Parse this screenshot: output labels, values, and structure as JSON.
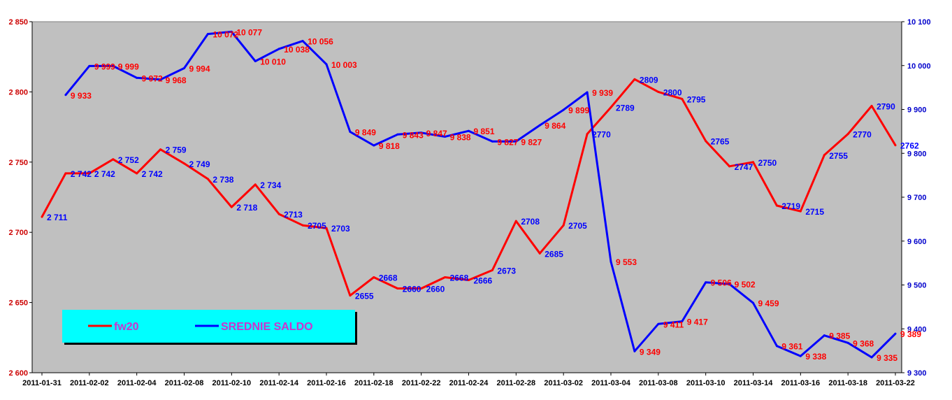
{
  "chart_data": {
    "type": "line",
    "categories": [
      "2011-01-31",
      "2011-02-01",
      "2011-02-02",
      "2011-02-03",
      "2011-02-04",
      "2011-02-07",
      "2011-02-08",
      "2011-02-09",
      "2011-02-10",
      "2011-02-11",
      "2011-02-14",
      "2011-02-15",
      "2011-02-16",
      "2011-02-17",
      "2011-02-18",
      "2011-02-21",
      "2011-02-22",
      "2011-02-23",
      "2011-02-24",
      "2011-02-25",
      "2011-02-28",
      "2011-03-01",
      "2011-03-02",
      "2011-03-03",
      "2011-03-04",
      "2011-03-07",
      "2011-03-08",
      "2011-03-09",
      "2011-03-10",
      "2011-03-11",
      "2011-03-14",
      "2011-03-15",
      "2011-03-16",
      "2011-03-17",
      "2011-03-18",
      "2011-03-21",
      "2011-03-22"
    ],
    "x_tick_labels": [
      "2011-01-31",
      "2011-02-02",
      "2011-02-04",
      "2011-02-08",
      "2011-02-10",
      "2011-02-14",
      "2011-02-16",
      "2011-02-18",
      "2011-02-22",
      "2011-02-24",
      "2011-02-28",
      "2011-03-02",
      "2011-03-04",
      "2011-03-08",
      "2011-03-10",
      "2011-03-14",
      "2011-03-16",
      "2011-03-18",
      "2011-03-22"
    ],
    "series": [
      {
        "name": "fw20",
        "axis": "left",
        "color": "#ff0000",
        "values": [
          2711,
          2742,
          2742,
          2752,
          2742,
          2759,
          2749,
          2738,
          2718,
          2734,
          2713,
          2705,
          2703,
          2655,
          2668,
          2660,
          2660,
          2668,
          2666,
          2673,
          2708,
          2685,
          2705,
          2770,
          2789,
          2809,
          2800,
          2795,
          2765,
          2747,
          2750,
          2719,
          2715,
          2755,
          2770,
          2790,
          2762
        ],
        "labels": [
          "2 711",
          "2 742",
          "2 742",
          "2 752",
          "2 742",
          "2 759",
          "2 749",
          "2 738",
          "2 718",
          "2 734",
          "2713",
          "2705",
          "2703",
          "2655",
          "2668",
          "2660",
          "2660",
          "2668",
          "2666",
          "2673",
          "2708",
          "2685",
          "2705",
          "2770",
          "2789",
          "2809",
          "2800",
          "2795",
          "2765",
          "2747",
          "2750",
          "2719",
          "2715",
          "2755",
          "2770",
          "2790",
          "2762"
        ]
      },
      {
        "name": "SREDNIE SALDO",
        "axis": "right",
        "color": "#0000ff",
        "values": [
          null,
          9933,
          9999,
          9999,
          9972,
          9968,
          9994,
          10072,
          10077,
          10010,
          10038,
          10056,
          10003,
          9849,
          9818,
          9843,
          9847,
          9838,
          9851,
          9827,
          9827,
          9864,
          9899,
          9939,
          9553,
          9349,
          9411,
          9417,
          9506,
          9502,
          9459,
          9361,
          9338,
          9385,
          9368,
          9335,
          9389
        ],
        "labels": [
          null,
          "9 933",
          "9 999",
          "9 999",
          "9 972",
          "9 968",
          "9 994",
          "10 072",
          "10 077",
          "10 010",
          "10 038",
          "10 056",
          "10 003",
          "9 849",
          "9 818",
          "9 843",
          "9 847",
          "9 838",
          "9 851",
          "9 827",
          "9 827",
          "9 864",
          "9 899",
          "9 939",
          "9 553",
          "9 349",
          "9 411",
          "9 417",
          "9 506",
          "9 502",
          "9 459",
          "9 361",
          "9 338",
          "9 385",
          "9 368",
          "9 335",
          "9 389"
        ]
      }
    ],
    "y_left": {
      "min": 2600,
      "max": 2850,
      "ticks": [
        2600,
        2650,
        2700,
        2750,
        2800,
        2850
      ],
      "tick_labels": [
        "2 600",
        "2 650",
        "2 700",
        "2 750",
        "2 800",
        "2 850"
      ]
    },
    "y_right": {
      "min": 9300,
      "max": 10100,
      "ticks": [
        9300,
        9400,
        9500,
        9600,
        9700,
        9800,
        9900,
        10000,
        10100
      ],
      "tick_labels": [
        "9 300",
        "9 400",
        "9 500",
        "9 600",
        "9 700",
        "9 800",
        "9 900",
        "10 000",
        "10 100"
      ]
    },
    "plot_background": "#c0c0c0",
    "legend": {
      "placement": "bottom-left",
      "background": "#00ffff",
      "entries": [
        {
          "name": "fw20",
          "color": "#ff0000"
        },
        {
          "name": "SREDNIE SALDO",
          "color": "#0000ff"
        }
      ]
    },
    "grid": false
  }
}
